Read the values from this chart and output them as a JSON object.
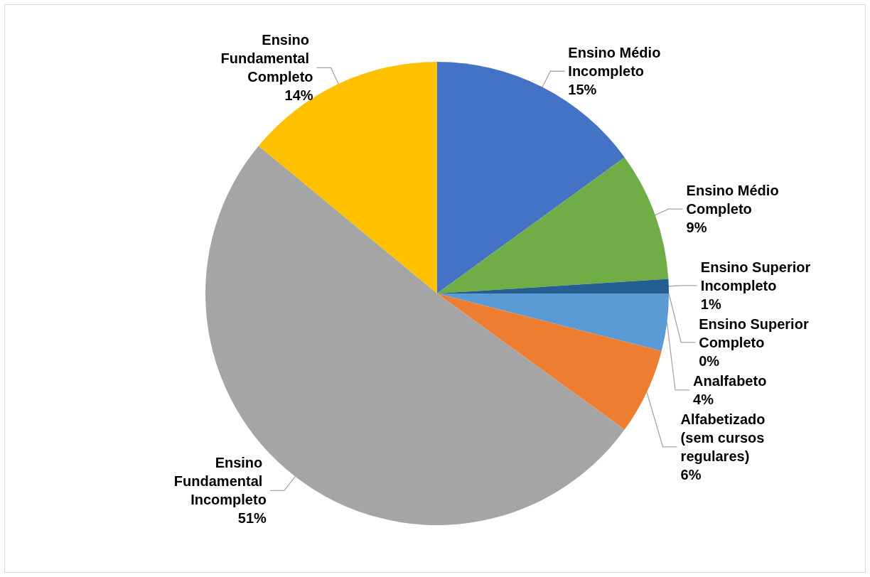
{
  "chart_data": {
    "type": "pie",
    "categories": [
      "Ensino Médio Incompleto",
      "Ensino Médio Completo",
      "Ensino Superior Incompleto",
      "Ensino Superior Completo",
      "Analfabeto",
      "Alfabetizado (sem cursos regulares)",
      "Ensino Fundamental Incompleto",
      "Ensino Fundamental Completo"
    ],
    "values": [
      15,
      9,
      1,
      0,
      4,
      6,
      51,
      14
    ],
    "value_labels": [
      "15%",
      "9%",
      "1%",
      "0%",
      "4%",
      "6%",
      "51%",
      "14%"
    ],
    "colors": [
      "#4472c4",
      "#70ad47",
      "#255e91",
      "#9e480e",
      "#5b9bd5",
      "#ed7d31",
      "#a5a5a5",
      "#ffc000"
    ],
    "legend": false
  }
}
